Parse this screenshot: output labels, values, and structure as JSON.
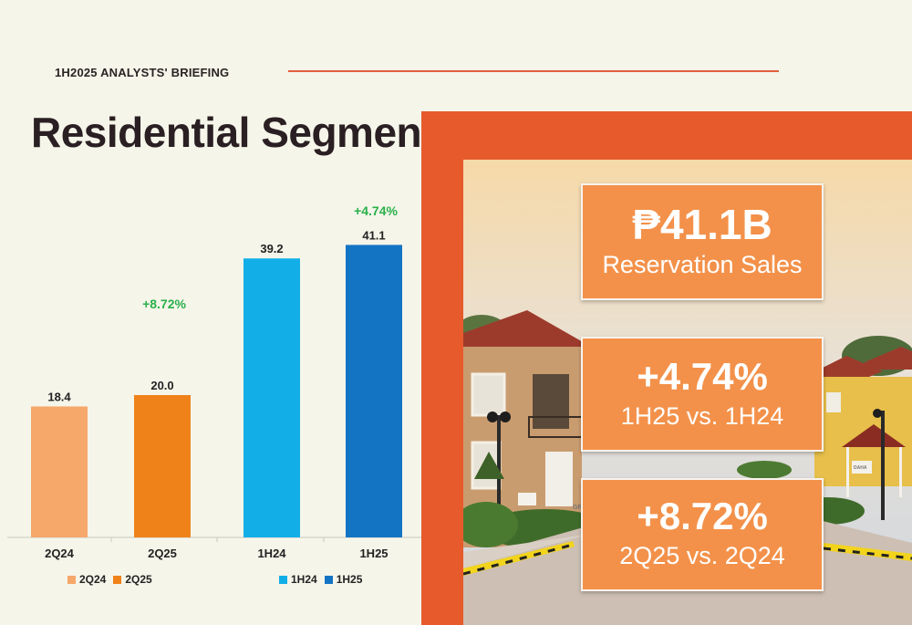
{
  "header": {
    "briefing": "1H2025 ANALYSTS' BRIEFING",
    "title": "Residential Segment"
  },
  "colors": {
    "2Q24": "#f5a86a",
    "2Q25": "#f0821a",
    "1H24": "#12aee8",
    "1H25": "#1474c4",
    "growth": "#2bb04a",
    "frame": "#e75a2c",
    "box": "#f3914a"
  },
  "chart_data": {
    "type": "bar",
    "groups": [
      {
        "categories": [
          "2Q24",
          "2Q25"
        ],
        "values": [
          18.4,
          20.0
        ],
        "value_labels": [
          "18.4",
          "20.0"
        ],
        "growth_label": "+8.72%",
        "legend": [
          "2Q24",
          "2Q25"
        ]
      },
      {
        "categories": [
          "1H24",
          "1H25"
        ],
        "values": [
          39.2,
          41.1
        ],
        "value_labels": [
          "39.2",
          "41.1"
        ],
        "growth_label": "+4.74%",
        "legend": [
          "1H24",
          "1H25"
        ]
      }
    ],
    "ylim": [
      0,
      45
    ]
  },
  "stats": [
    {
      "big": "₱41.1B",
      "sub": "Reservation Sales"
    },
    {
      "big": "+4.74%",
      "sub": "1H25 vs. 1H24"
    },
    {
      "big": "+8.72%",
      "sub": "2Q25 vs. 2Q24"
    }
  ],
  "photo": {
    "sign_text": "GR",
    "sign_text_2": "DAHA"
  }
}
